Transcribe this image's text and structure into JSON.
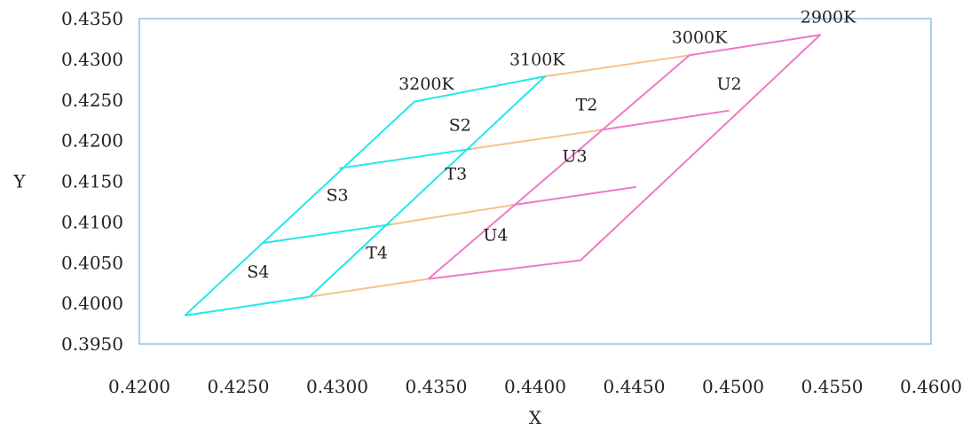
{
  "chart_data": {
    "type": "line",
    "title": "",
    "xlabel": "X",
    "ylabel": "Y",
    "xlim": [
      0.42,
      0.46
    ],
    "ylim": [
      0.395,
      0.435
    ],
    "xticks": [
      "0.4200",
      "0.4250",
      "0.4300",
      "0.4350",
      "0.4400",
      "0.4450",
      "0.4500",
      "0.4550",
      "0.4600"
    ],
    "yticks": [
      "0.3950",
      "0.4000",
      "0.4050",
      "0.4100",
      "0.4150",
      "0.4200",
      "0.4250",
      "0.4300",
      "0.4350"
    ],
    "grid": false,
    "legend": "none",
    "colors": {
      "S": "#22e8e8",
      "T": "#f8c08a",
      "U": "#f078c8",
      "frame": "#8cc4ee"
    },
    "series": [
      {
        "group": "S",
        "x": [
          0.4223,
          0.4339,
          0.4405,
          0.4286,
          0.4223
        ],
        "y": [
          0.3985,
          0.4248,
          0.4279,
          0.4008,
          0.3985
        ]
      },
      {
        "group": "S",
        "x": [
          0.4301,
          0.4368
        ],
        "y": [
          0.4166,
          0.419
        ]
      },
      {
        "group": "S",
        "x": [
          0.4262,
          0.4327
        ],
        "y": [
          0.4074,
          0.4097
        ]
      },
      {
        "group": "T",
        "x": [
          0.4286,
          0.4346
        ],
        "y": [
          0.4008,
          0.403
        ]
      },
      {
        "group": "T",
        "x": [
          0.4327,
          0.4389
        ],
        "y": [
          0.4097,
          0.4121
        ]
      },
      {
        "group": "T",
        "x": [
          0.4368,
          0.4433
        ],
        "y": [
          0.419,
          0.4213
        ]
      },
      {
        "group": "T",
        "x": [
          0.4405,
          0.4478
        ],
        "y": [
          0.4279,
          0.4305
        ]
      },
      {
        "group": "U",
        "x": [
          0.4346,
          0.4478,
          0.4544,
          0.4423,
          0.4346
        ],
        "y": [
          0.403,
          0.4305,
          0.433,
          0.4053,
          0.403
        ]
      },
      {
        "group": "U",
        "x": [
          0.4389,
          0.4451
        ],
        "y": [
          0.4121,
          0.4143
        ]
      },
      {
        "group": "U",
        "x": [
          0.4433,
          0.4498
        ],
        "y": [
          0.4213,
          0.4237
        ]
      }
    ],
    "annotations": [
      {
        "text": "3200K",
        "x": 0.4345,
        "y": 0.4263
      },
      {
        "text": "3100K",
        "x": 0.4401,
        "y": 0.4293
      },
      {
        "text": "3000K",
        "x": 0.4483,
        "y": 0.432
      },
      {
        "text": "2900K",
        "x": 0.4548,
        "y": 0.4345
      },
      {
        "text": "S2",
        "x": 0.4362,
        "y": 0.4212
      },
      {
        "text": "T2",
        "x": 0.4426,
        "y": 0.4237
      },
      {
        "text": "U2",
        "x": 0.4498,
        "y": 0.4263
      },
      {
        "text": "S3",
        "x": 0.43,
        "y": 0.4126
      },
      {
        "text": "T3",
        "x": 0.436,
        "y": 0.4152
      },
      {
        "text": "U3",
        "x": 0.442,
        "y": 0.4174
      },
      {
        "text": "S4",
        "x": 0.426,
        "y": 0.4032
      },
      {
        "text": "T4",
        "x": 0.432,
        "y": 0.4055
      },
      {
        "text": "U4",
        "x": 0.438,
        "y": 0.4077
      }
    ]
  }
}
